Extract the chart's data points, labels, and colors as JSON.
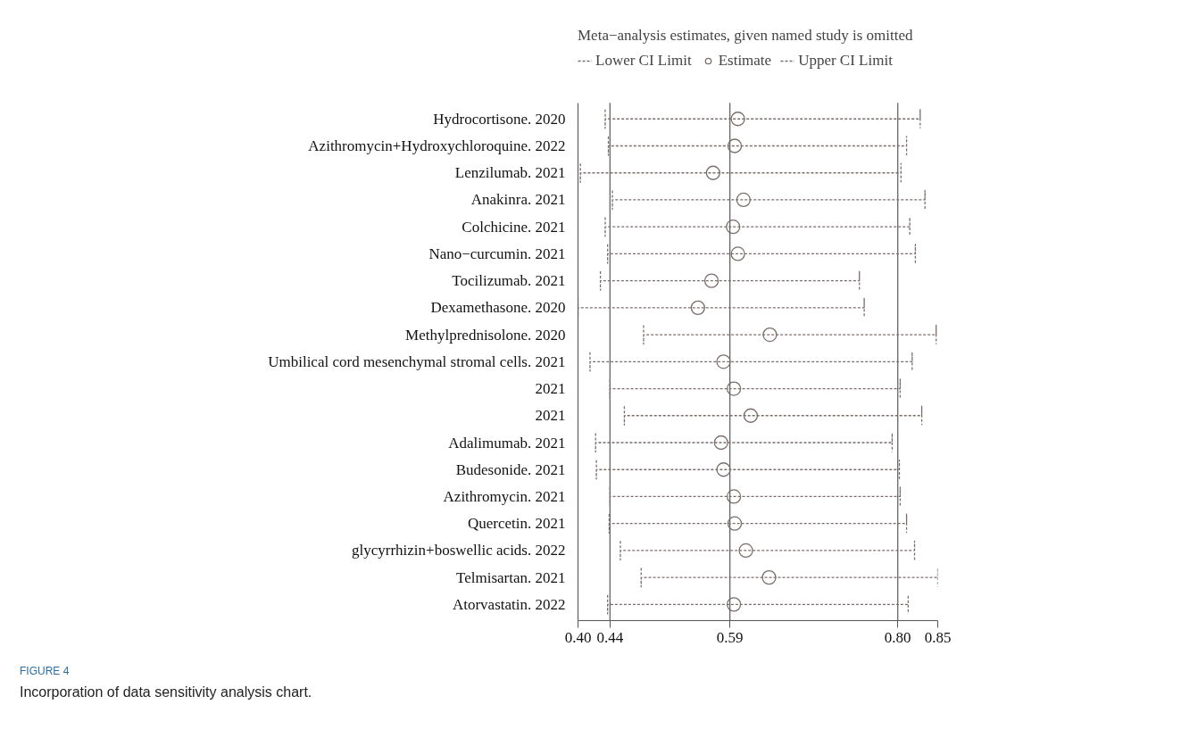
{
  "chart_data": {
    "type": "scatter",
    "orientation": "horizontal",
    "legend_title": "Meta−analysis estimates, given named study is omitted",
    "legend": "top",
    "marker": "circle",
    "categories": [
      "Hydrocortisone. 2020",
      "Azithromycin+Hydroxychloroquine. 2022",
      "Lenzilumab. 2021",
      "Anakinra. 2021",
      "Colchicine. 2021",
      "Nano−curcumin. 2021",
      "Tocilizumab. 2021",
      "Dexamethasone. 2020",
      "Methylprednisolone. 2020",
      "Umbilical cord mesenchymal stromal cells. 2021",
      "2021",
      "2021",
      "Adalimumab. 2021",
      "Budesonide. 2021",
      "Azithromycin. 2021",
      "Quercetin. 2021",
      "glycyrrhizin+boswellic acids. 2022",
      "Telmisartan. 2021",
      "Atorvastatin. 2022"
    ],
    "series": [
      {
        "name": "Estimate",
        "color": "#7a6e6b",
        "values": [
          0.6,
          0.596,
          0.569,
          0.607,
          0.594,
          0.6,
          0.567,
          0.55,
          0.64,
          0.582,
          0.595,
          0.616,
          0.579,
          0.582,
          0.595,
          0.596,
          0.61,
          0.639,
          0.595
        ],
        "errors": [
          [
            0.434,
            0.828
          ],
          [
            0.438,
            0.811
          ],
          [
            0.403,
            0.804
          ],
          [
            0.443,
            0.834
          ],
          [
            0.434,
            0.815
          ],
          [
            0.437,
            0.822
          ],
          [
            0.428,
            0.752
          ],
          [
            0.4,
            0.758
          ],
          [
            0.482,
            0.848
          ],
          [
            0.415,
            0.818
          ],
          [
            0.44,
            0.803
          ],
          [
            0.458,
            0.83
          ],
          [
            0.422,
            0.793
          ],
          [
            0.423,
            0.802
          ],
          [
            0.44,
            0.803
          ],
          [
            0.439,
            0.811
          ],
          [
            0.453,
            0.821
          ],
          [
            0.479,
            0.85
          ],
          [
            0.437,
            0.813
          ]
        ]
      }
    ],
    "xlim": [
      0.4,
      0.85
    ],
    "xticks": [
      {
        "value": 0.4,
        "label": "0.40"
      },
      0.44,
      0.59,
      {
        "value": 0.8,
        "label": "0.80"
      },
      0.85
    ],
    "ref_lines": [
      {
        "axis": "x",
        "value": 0.44,
        "label": null
      },
      {
        "axis": "x",
        "value": 0.59,
        "label": null
      },
      {
        "axis": "x",
        "value": 0.8,
        "label": null
      }
    ],
    "grid": false,
    "annotations": [
      "Lower CI Limit",
      "Upper CI Limit",
      "FIGURE 4",
      "Incorporation of data sensitivity analysis chart."
    ]
  }
}
